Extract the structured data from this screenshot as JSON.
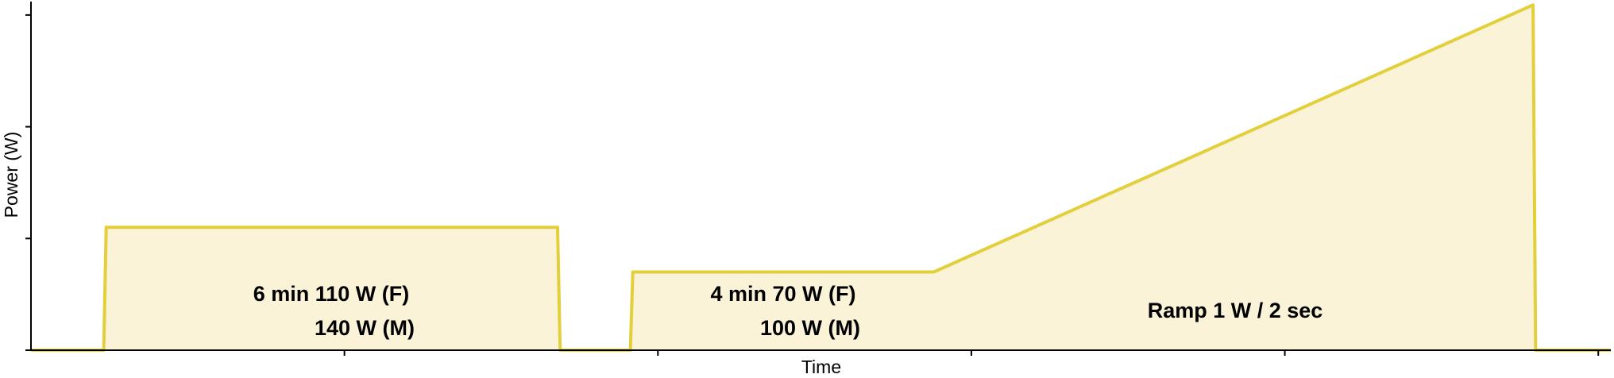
{
  "chart_data": {
    "type": "area",
    "x_label": "Time",
    "y_label": "Power (W)",
    "x": [
      0,
      58,
      60,
      420,
      422,
      478,
      480,
      720,
      1198,
      1200,
      1260
    ],
    "series": [
      {
        "color": "#e3cf3b",
        "fill": "#faf3d7",
        "values": [
          0,
          0,
          110,
          110,
          0,
          0,
          70,
          70,
          309,
          0,
          0
        ]
      }
    ],
    "xlim": [
      0,
      1260
    ],
    "xticks": [
      250,
      500,
      750,
      1000,
      1250
    ],
    "ylim": [
      0,
      312
    ],
    "yticks": [
      0,
      100,
      200,
      300
    ],
    "annotations": [
      "6 min 110 W (F)",
      "140 W (M)",
      "4 min 70 W (F)",
      "100 W (M)",
      "Ramp 1 W / 2 sec"
    ]
  }
}
